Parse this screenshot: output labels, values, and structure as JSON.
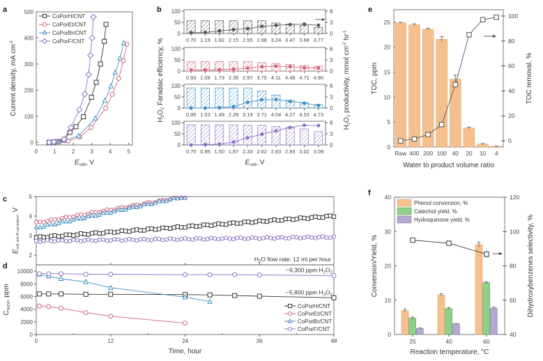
{
  "chart_data": [
    {
      "panel": "a",
      "type": "line",
      "xlabel": "E_cell, V",
      "xlabel_main": "E",
      "xlabel_sub": "cell",
      "xlabel_unit": ", V",
      "ylabel": "Current density, mA cm-2",
      "ylabel_text": "Current density, mA cm",
      "ylabel_sup": "-2",
      "xlim": [
        0,
        5.2
      ],
      "ylim": [
        -10,
        500
      ],
      "xticks": [
        0,
        1,
        2,
        3,
        4,
        5
      ],
      "yticks": [
        0,
        100,
        200,
        300,
        400,
        500
      ],
      "legend": "top-left",
      "series": [
        {
          "name": "CoPorH/CNT",
          "color": "#333333",
          "marker": "square",
          "x": [
            0.7,
            1.0,
            1.2,
            1.5,
            1.82,
            2.15,
            2.55,
            2.98,
            3.24,
            3.47,
            3.68,
            3.77
          ],
          "y": [
            0,
            1,
            3,
            8,
            38,
            60,
            98,
            173,
            230,
            300,
            387,
            452
          ]
        },
        {
          "name": "CoPorEt/CNT",
          "color": "#d0637a",
          "marker": "circle",
          "x": [
            0.93,
            1.08,
            1.73,
            2.35,
            2.97,
            3.75,
            4.11,
            4.46,
            4.71,
            4.9
          ],
          "y": [
            0,
            2,
            5,
            20,
            57,
            131,
            184,
            245,
            313,
            376
          ]
        },
        {
          "name": "CoPorBr/CNT",
          "color": "#3f8fc4",
          "marker": "triangle",
          "x": [
            0.85,
            1.03,
            1.49,
            2.29,
            3.19,
            3.71,
            4.04,
            4.27,
            4.53,
            4.73
          ],
          "y": [
            0,
            2,
            6,
            25,
            92,
            160,
            215,
            267,
            322,
            381
          ]
        },
        {
          "name": "CoPorF/CNT",
          "color": "#8a6fc4",
          "marker": "diamond",
          "x": [
            0.7,
            0.95,
            1.5,
            1.87,
            2.33,
            2.62,
            2.83,
            2.93,
            3.02,
            3.09
          ],
          "y": [
            0,
            2,
            12,
            57,
            125,
            185,
            260,
            333,
            400,
            480
          ]
        }
      ]
    },
    {
      "panel": "b",
      "type": "bar",
      "xlabel": "E_cell, V",
      "ylabel_left": "H2O2 Faradaic efficiency, %",
      "ylabel_right": "H2O2 productivity, mmol cm-2 hr-1",
      "ylim_left": [
        0,
        100
      ],
      "ylim_right": [
        0,
        6
      ],
      "yticks_left": [
        0,
        50,
        100
      ],
      "yticks_right": [
        0,
        3,
        6
      ],
      "subpanels": [
        {
          "name": "CoPorH/CNT",
          "color": "#555555",
          "categories": [
            "0.70",
            "1.19",
            "1.82",
            "2.15",
            "2.55",
            "2.98",
            "3.24",
            "3.47",
            "3.68",
            "3.77"
          ],
          "fe": [
            57,
            57,
            57,
            57,
            57,
            57,
            47,
            42,
            35,
            27
          ],
          "productivity": [
            0.2,
            0.3,
            0.7,
            1.0,
            1.3,
            1.9,
            2.2,
            2.4,
            2.5,
            2.2
          ]
        },
        {
          "name": "CoPorEt/CNT",
          "color": "#d0637a",
          "categories": [
            "0.93",
            "1.08",
            "1.73",
            "2.35",
            "2.97",
            "3.75",
            "4.11",
            "4.46",
            "4.71",
            "4.90"
          ],
          "fe": [
            42,
            42,
            42,
            42,
            42,
            38,
            33,
            30,
            25,
            22
          ],
          "productivity": [
            0.3,
            0.3,
            0.4,
            0.5,
            0.8,
            1.2,
            1.3,
            1.2,
            0.9,
            0.8
          ]
        },
        {
          "name": "CoPorBr/CNT",
          "color": "#3f8fc4",
          "categories": [
            "0.85",
            "1.03",
            "1.49",
            "2.29",
            "3.19",
            "3.71",
            "4.04",
            "4.27",
            "4.53",
            "4.73"
          ],
          "fe": [
            90,
            90,
            90,
            90,
            90,
            77,
            58,
            35,
            25,
            15
          ],
          "productivity": [
            0.0,
            0.0,
            0.1,
            0.4,
            1.5,
            2.2,
            2.3,
            1.8,
            1.3,
            0.7
          ]
        },
        {
          "name": "CoPorF/CNT",
          "color": "#8a6fc4",
          "categories": [
            "0.70",
            "0.95",
            "1.50",
            "1.87",
            "2.33",
            "2.62",
            "2.83",
            "2.93",
            "3.02",
            "3.09"
          ],
          "fe": [
            90,
            90,
            90,
            90,
            88,
            88,
            82,
            78,
            72,
            60
          ],
          "productivity": [
            0.0,
            0.1,
            0.2,
            0.8,
            1.9,
            2.9,
            3.8,
            4.7,
            5.3,
            5.2
          ]
        }
      ]
    },
    {
      "panel": "c",
      "type": "scatter",
      "xlim": [
        0,
        48
      ],
      "ylim": [
        1.5,
        5
      ],
      "yticks": [
        2,
        3,
        4,
        5
      ],
      "ylabel": "E_cell, w/o iR correction, V",
      "annotation": "H2O flow rate: 12 ml per hour",
      "series": [
        {
          "name": "CoPorH/CNT",
          "color": "#333333",
          "marker": "square",
          "start": 2.9,
          "end": 4.0,
          "t_end": 48
        },
        {
          "name": "CoPorEt/CNT",
          "color": "#d0637a",
          "marker": "circle",
          "start": 3.65,
          "end": 5.0,
          "t_end": 24
        },
        {
          "name": "CoPorBr/CNT",
          "color": "#3f8fc4",
          "marker": "triangle",
          "start": 3.4,
          "end": 5.0,
          "t_end": 24
        },
        {
          "name": "CoPorF/CNT",
          "color": "#8a6fc4",
          "marker": "circle",
          "start": 2.72,
          "end": 2.92,
          "t_end": 48
        }
      ]
    },
    {
      "panel": "d",
      "type": "line",
      "xlabel": "Time, hour",
      "ylabel": "C_H2O2, ppm",
      "xlim": [
        0,
        48
      ],
      "ylim": [
        0,
        11000
      ],
      "xticks": [
        0,
        12,
        24,
        36,
        48
      ],
      "yticks": [
        0,
        2000,
        4000,
        6000,
        8000,
        10000
      ],
      "annotations": [
        "~9,300 ppm H2O2",
        "~5,800 ppm H2O2"
      ],
      "legend": "bottom-right",
      "series": [
        {
          "name": "CoPorH/CNT",
          "color": "#333333",
          "marker": "square",
          "x": [
            0.5,
            2,
            4,
            8,
            12,
            24,
            28,
            32,
            36,
            48
          ],
          "y": [
            6400,
            6400,
            6400,
            6350,
            6350,
            6300,
            6250,
            6150,
            6050,
            5800
          ]
        },
        {
          "name": "CoPorEt/CNT",
          "color": "#d0637a",
          "marker": "circle",
          "x": [
            0.5,
            2,
            4,
            8,
            12,
            24
          ],
          "y": [
            4500,
            4400,
            4150,
            3450,
            2900,
            1800
          ]
        },
        {
          "name": "CoPorBr/CNT",
          "color": "#3f8fc4",
          "marker": "triangle",
          "x": [
            0.5,
            2,
            4,
            8,
            12,
            24,
            28
          ],
          "y": [
            9500,
            9200,
            8800,
            8300,
            7400,
            5900,
            5200
          ]
        },
        {
          "name": "CoPorF/CNT",
          "color": "#8a6fc4",
          "marker": "circle",
          "x": [
            0.5,
            2,
            4,
            8,
            12,
            24,
            28,
            32,
            36,
            48
          ],
          "y": [
            9600,
            9600,
            9600,
            9500,
            9500,
            9450,
            9450,
            9450,
            9400,
            9300
          ]
        }
      ]
    },
    {
      "panel": "e",
      "type": "bar",
      "xlabel": "Water to product volume ratio",
      "ylabel_left": "TOC, ppm",
      "ylabel_right": "TOC removal, %",
      "categories": [
        "Raw",
        "400",
        "200",
        "100",
        "40",
        "20",
        "10",
        "4"
      ],
      "ylim_left": [
        0,
        27.5
      ],
      "ylim_right": [
        -5,
        105
      ],
      "yticks_left": [
        0,
        5,
        10,
        15,
        20,
        25
      ],
      "yticks_right": [
        0,
        20,
        40,
        60,
        80,
        100
      ],
      "series": [
        {
          "name": "TOC",
          "color": "#f5c08e",
          "values": [
            24.9,
            24.5,
            23.6,
            21.6,
            13.6,
            3.8,
            0.6,
            0.15
          ],
          "errors": [
            0.1,
            0.2,
            0.2,
            0.5,
            0.8,
            0.2,
            0.1,
            0.05
          ]
        },
        {
          "name": "TOC removal",
          "color": "#555555",
          "marker": "square",
          "values": [
            0,
            1.5,
            5,
            13,
            45,
            85,
            97,
            99
          ]
        }
      ]
    },
    {
      "panel": "f",
      "type": "bar",
      "xlabel": "Reaction temperature, °C",
      "ylabel_left": "Conversion/Yield, %",
      "ylabel_right": "Dihydroxybenzenes selectivity, %",
      "categories": [
        "25",
        "40",
        "60"
      ],
      "ylim_left": [
        0,
        40
      ],
      "ylim_right": [
        40,
        120
      ],
      "yticks_left": [
        0,
        10,
        20,
        30,
        40
      ],
      "yticks_right": [
        40,
        60,
        80,
        100,
        120
      ],
      "legend": "top-left",
      "series": [
        {
          "name": "Phenol conversion, %",
          "color": "#f5c08e",
          "values": [
            7.0,
            11.5,
            26.2
          ],
          "errors": [
            0.5,
            0.4,
            0.7
          ]
        },
        {
          "name": "Catechol yield, %",
          "color": "#8fd08a",
          "values": [
            4.8,
            7.6,
            15.1
          ],
          "errors": [
            0.3,
            0.3,
            0.3
          ]
        },
        {
          "name": "Hydroquinone yield, %",
          "color": "#b6a8d2",
          "values": [
            1.8,
            3.1,
            7.7
          ],
          "errors": [
            0.1,
            0.1,
            0.3
          ]
        },
        {
          "name": "Dihydroxybenzenes selectivity",
          "color": "#333333",
          "marker": "square",
          "values": [
            95,
            93.2,
            86.8
          ],
          "errors": [
            0,
            0,
            2
          ]
        }
      ]
    }
  ],
  "labels": {
    "a": "a",
    "b": "b",
    "c": "c",
    "d": "d",
    "e": "e",
    "f": "f"
  }
}
